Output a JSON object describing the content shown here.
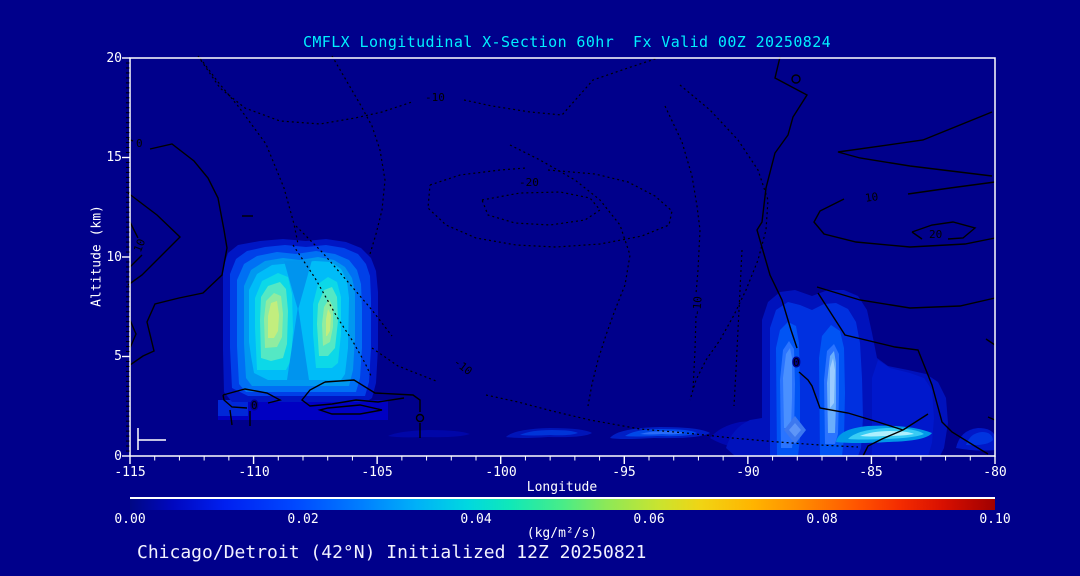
{
  "window": {
    "background": "#00008B",
    "accent_title": "#00F0FF",
    "axis_color": "#FFFFFF",
    "contour_color": "#000000"
  },
  "title": {
    "text": "CMFLX Longitudinal X-Section 60hr  Fx Valid 00Z 20250824"
  },
  "footer": {
    "text": "Chicago/Detroit (42°N) Initialized 12Z 20250821"
  },
  "axes": {
    "x_label": "Longitude",
    "y_label": "Altitude (km)",
    "x_ticks": [
      "-115",
      "-110",
      "-105",
      "-100",
      "-95",
      "-90",
      "-85",
      "-80"
    ],
    "y_ticks": [
      "20",
      "15",
      "10",
      "5",
      "0"
    ]
  },
  "colorbar": {
    "tick_labels": [
      "0.00",
      "0.02",
      "0.04",
      "0.06",
      "0.08",
      "0.10"
    ],
    "unit_label": "(kg/m²/s)",
    "gradient_stops": [
      "#000884",
      "#0020f0",
      "#0048ff",
      "#0080ff",
      "#00b0f8",
      "#00d8e0",
      "#48ec88",
      "#8ce858",
      "#c8e430",
      "#f0d414",
      "#ffb400",
      "#ff8800",
      "#ff5500",
      "#d81000",
      "#a00000"
    ]
  },
  "contour_labels": {
    "solid": [
      "0",
      "10",
      "0",
      "0",
      "10",
      "20"
    ],
    "dotted": [
      "-10",
      "-20",
      "-10",
      "-10"
    ]
  },
  "chart_data": {
    "type": "heatmap",
    "subtype": "filled-contour vertical cross-section with line contours",
    "title": "CMFLX Longitudinal X-Section 60hr  Fx Valid 00Z 20250824",
    "xlabel": "Longitude",
    "ylabel": "Altitude (km)",
    "xlim": [
      -115,
      -80
    ],
    "ylim": [
      0,
      20
    ],
    "x_ticks": [
      -115,
      -110,
      -105,
      -100,
      -95,
      -90,
      -85,
      -80
    ],
    "y_ticks": [
      0,
      5,
      10,
      15,
      20
    ],
    "colorbar": {
      "label": "(kg/m²/s)",
      "min": 0.0,
      "max": 0.1,
      "ticks": [
        0.0,
        0.02,
        0.04,
        0.06,
        0.08,
        0.1
      ]
    },
    "shaded_regions": [
      {
        "name": "western convective flux maximum",
        "lon_range": [
          -111.2,
          -105.0
        ],
        "alt_km_range": [
          1.8,
          10.5
        ],
        "peak_value_kg_m2_s": 0.032,
        "peak_locations": [
          {
            "lon": -109.9,
            "alt_km": 7.6
          },
          {
            "lon": -107.2,
            "alt_km": 7.3
          }
        ]
      },
      {
        "name": "eastern convective flux region",
        "lon_range": [
          -89.3,
          -82.5
        ],
        "alt_km_range": [
          0.0,
          8.5
        ],
        "peak_value_kg_m2_s": 0.016,
        "peak_locations": [
          {
            "lon": -88.0,
            "alt_km": 4.8
          },
          {
            "lon": -86.3,
            "alt_km": 4.5
          }
        ]
      },
      {
        "name": "near-surface cyan flux streak",
        "lon_range": [
          -86.2,
          -82.7
        ],
        "alt_km_range": [
          0.7,
          1.4
        ],
        "peak_value_kg_m2_s": 0.026,
        "peak_location": {
          "lon": -85.2,
          "alt_km": 1.1
        }
      },
      {
        "name": "shallow boundary-layer streaks",
        "lon_range": [
          -99.8,
          -89.8
        ],
        "alt_km_range": [
          0.7,
          1.4
        ],
        "peak_value_kg_m2_s": 0.012
      },
      {
        "name": "southeast corner shallow patch",
        "lon_range": [
          -81.5,
          -80.0
        ],
        "alt_km_range": [
          0.3,
          1.3
        ],
        "peak_value_kg_m2_s": 0.01
      }
    ],
    "line_contours": {
      "style": "solid = positive values, dotted = negative values, interval 10",
      "solid_labels_visible": [
        0,
        10,
        20
      ],
      "dotted_labels_visible": [
        -10,
        -20
      ],
      "eastern_closed_max": {
        "label": 20,
        "lon": -82.0,
        "alt_km": 11.0
      },
      "western_edge_max": {
        "label": 10,
        "lon": -114.6,
        "alt_km": 10.5
      },
      "central_closed_min": {
        "label": -20,
        "lon": -97.4,
        "alt_km": 13.1
      },
      "upper_min_label": {
        "label": -10,
        "lon": -102.4,
        "alt_km": 17.8
      }
    }
  }
}
